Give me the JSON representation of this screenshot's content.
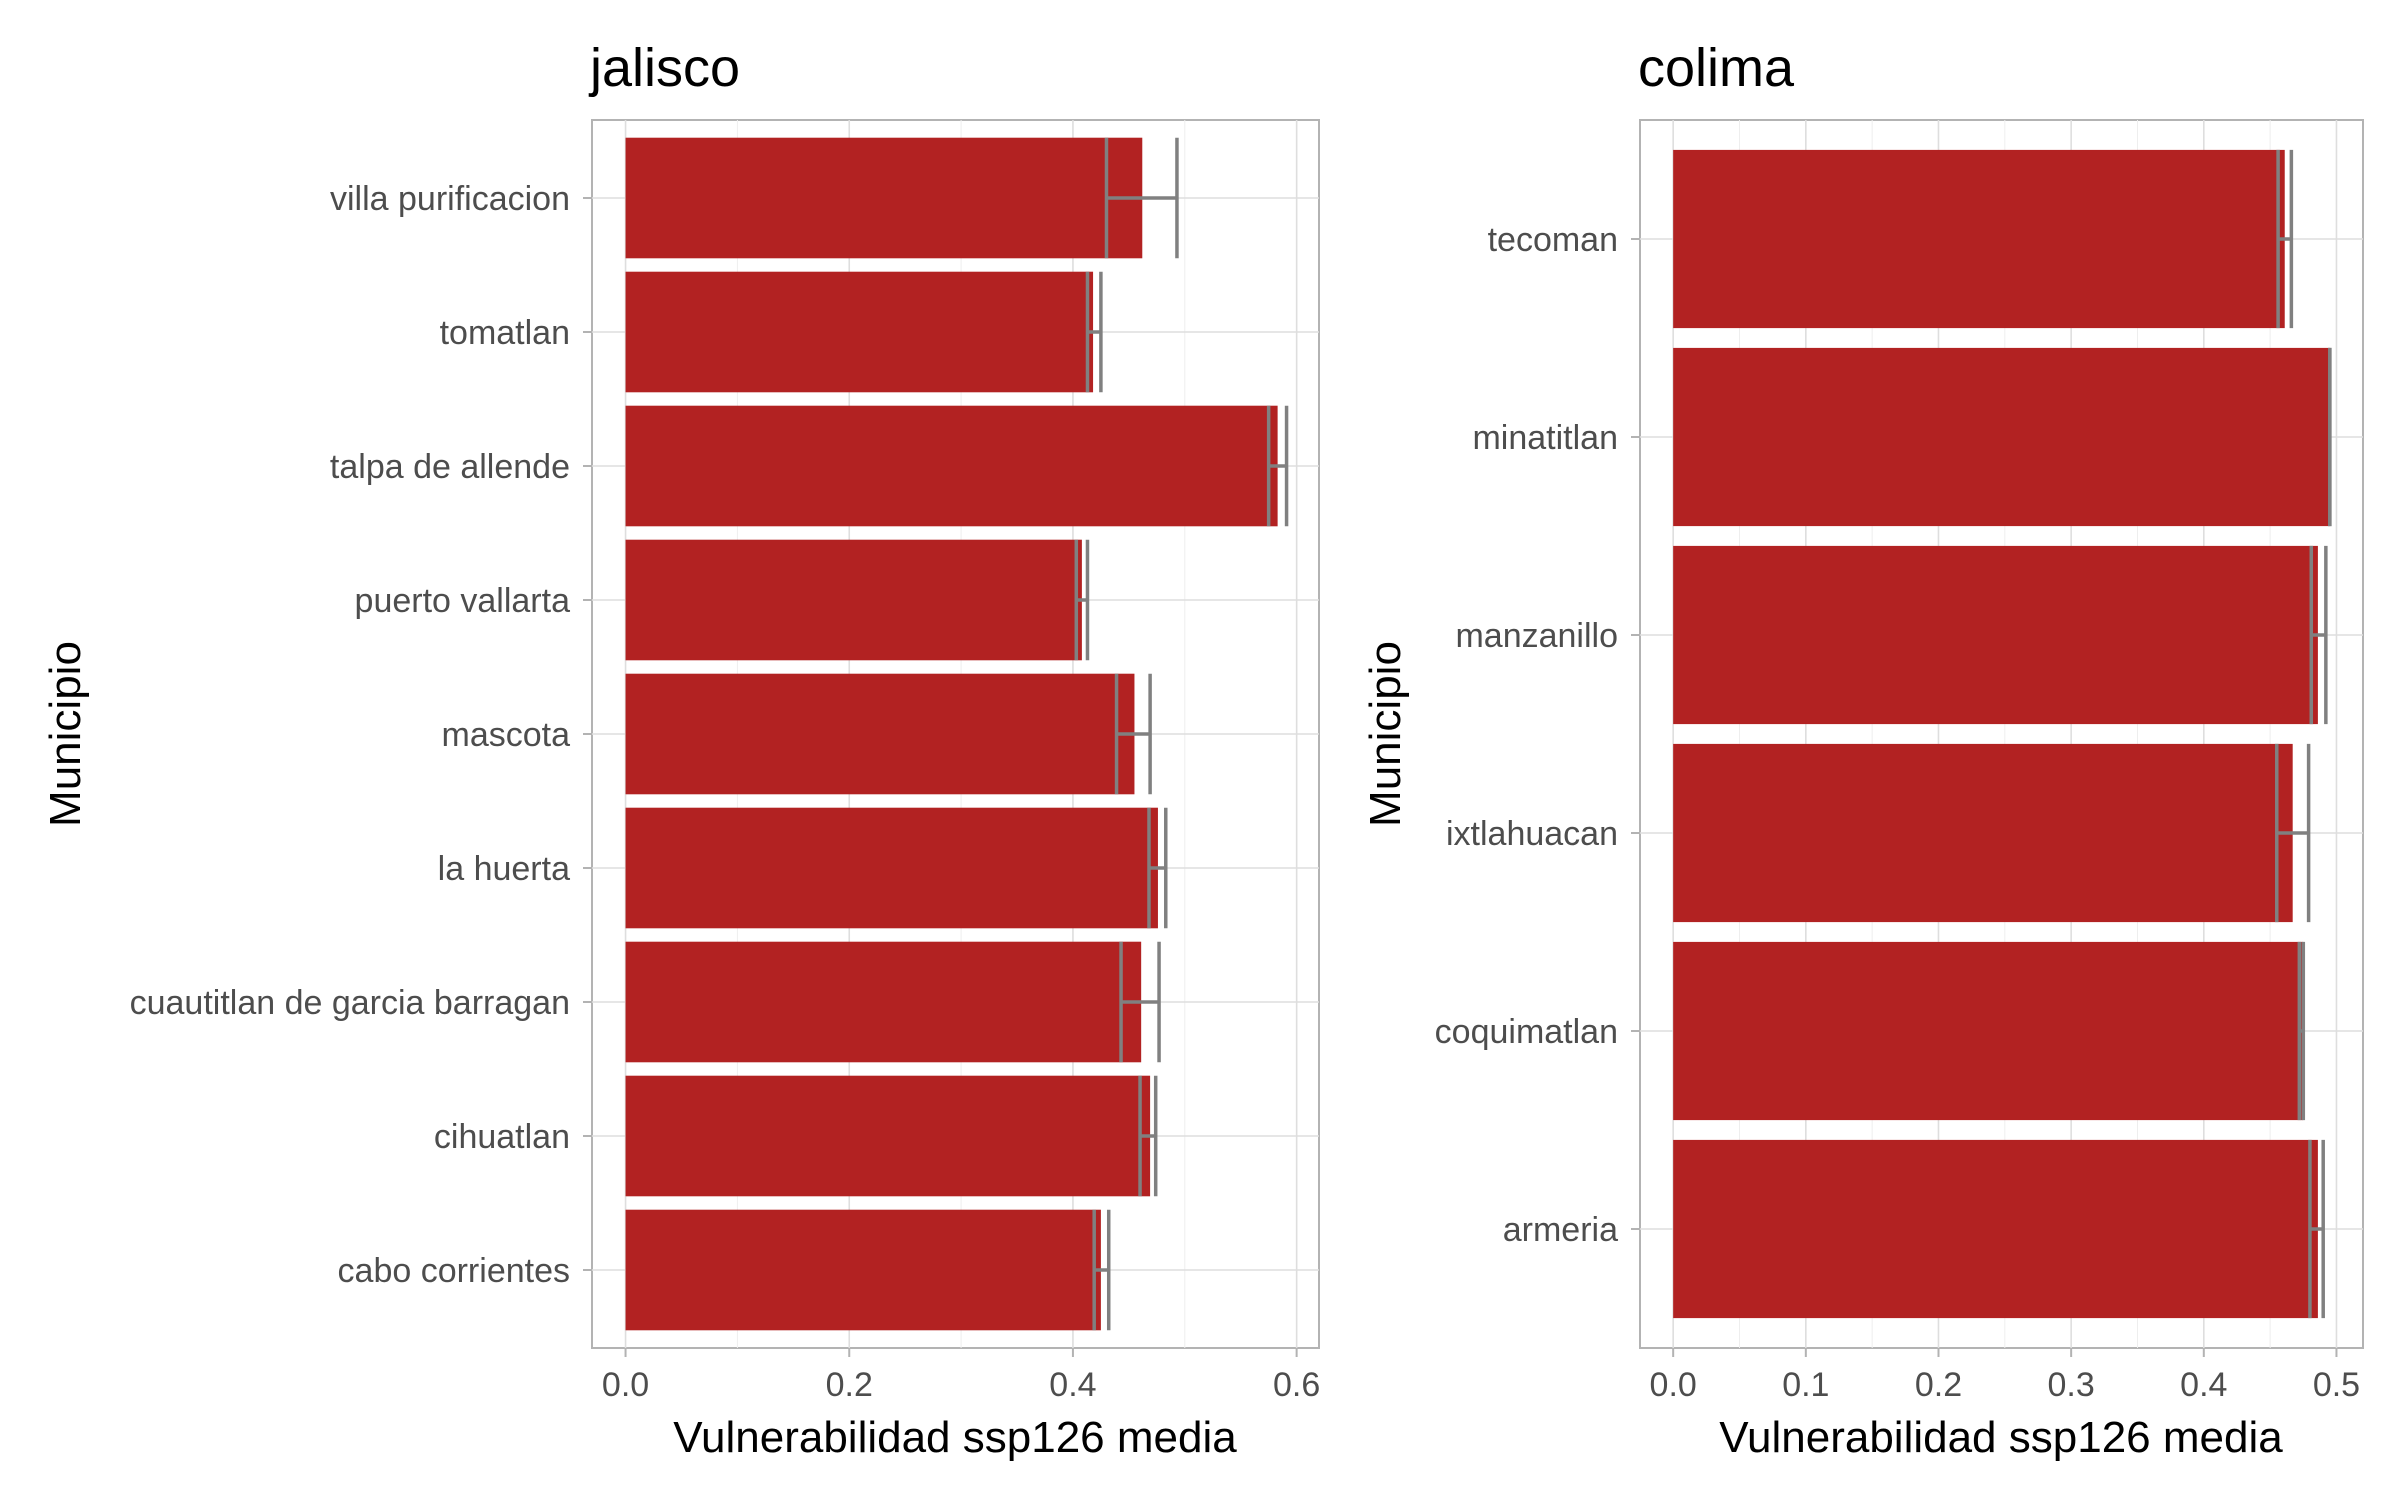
{
  "chart_data": [
    {
      "type": "bar",
      "orientation": "horizontal",
      "title": "jalisco",
      "xlabel": "Vulnerabilidad ssp126 media",
      "ylabel": "Municipio",
      "xlim": [
        -0.03,
        0.62
      ],
      "xticks": [
        0.0,
        0.2,
        0.4,
        0.6
      ],
      "xtick_labels": [
        "0.0",
        "0.2",
        "0.4",
        "0.6"
      ],
      "grid": true,
      "categories": [
        "villa purificacion",
        "tomatlan",
        "talpa de allende",
        "puerto vallarta",
        "mascota",
        "la huerta",
        "cuautitlan de garcia barragan",
        "cihuatlan",
        "cabo corrientes"
      ],
      "values": [
        0.462,
        0.418,
        0.583,
        0.408,
        0.455,
        0.476,
        0.461,
        0.469,
        0.425
      ],
      "error_low": [
        0.43,
        0.413,
        0.575,
        0.403,
        0.439,
        0.468,
        0.443,
        0.46,
        0.419
      ],
      "error_high": [
        0.493,
        0.425,
        0.591,
        0.413,
        0.469,
        0.483,
        0.477,
        0.474,
        0.432
      ],
      "bar_color": "#b22222",
      "error_color": "#808080"
    },
    {
      "type": "bar",
      "orientation": "horizontal",
      "title": "colima",
      "xlabel": "Vulnerabilidad ssp126 media",
      "ylabel": "Municipio",
      "xlim": [
        -0.025,
        0.52
      ],
      "xticks": [
        0.0,
        0.1,
        0.2,
        0.3,
        0.4,
        0.5
      ],
      "xtick_labels": [
        "0.0",
        "0.1",
        "0.2",
        "0.3",
        "0.4",
        "0.5"
      ],
      "grid": true,
      "categories": [
        "tecoman",
        "minatitlan",
        "manzanillo",
        "ixtlahuacan",
        "coquimatlan",
        "armeria"
      ],
      "values": [
        0.461,
        0.495,
        0.486,
        0.467,
        0.475,
        0.486
      ],
      "error_low": [
        0.456,
        0.495,
        0.481,
        0.455,
        0.472,
        0.48
      ],
      "error_high": [
        0.466,
        0.495,
        0.492,
        0.479,
        0.475,
        0.49
      ],
      "bar_color": "#b22222",
      "error_color": "#808080"
    }
  ]
}
